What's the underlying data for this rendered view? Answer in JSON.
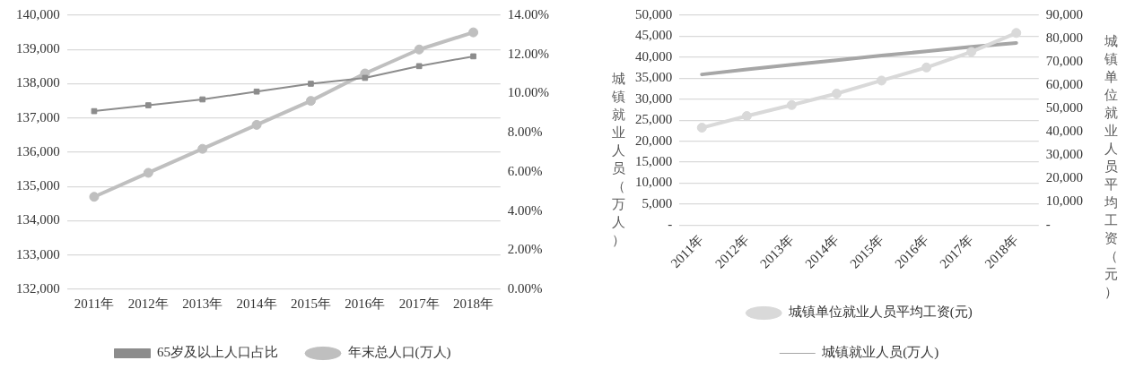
{
  "chart_data": [
    {
      "type": "line",
      "categories": [
        "2011年",
        "2012年",
        "2013年",
        "2014年",
        "2015年",
        "2016年",
        "2017年",
        "2018年"
      ],
      "series": [
        {
          "name": "年末总人口(万人)",
          "color": "#bfbfbf",
          "marker": "circle",
          "values": [
            134700,
            135400,
            136100,
            136800,
            137500,
            138300,
            139000,
            139500
          ]
        },
        {
          "name": "65岁及以上人口占比",
          "color": "#8c8c8c",
          "marker": "square",
          "axis": "y2",
          "values": [
            9.1,
            9.4,
            9.7,
            10.1,
            10.5,
            10.8,
            11.4,
            11.9
          ]
        }
      ],
      "ylim": [
        132000,
        140000
      ],
      "yticks": [
        {
          "value": 132000,
          "label": "132,000"
        },
        {
          "value": 133000,
          "label": "133,000"
        },
        {
          "value": 134000,
          "label": "134,000"
        },
        {
          "value": 135000,
          "label": "135,000"
        },
        {
          "value": 136000,
          "label": "136,000"
        },
        {
          "value": 137000,
          "label": "137,000"
        },
        {
          "value": 138000,
          "label": "138,000"
        },
        {
          "value": 139000,
          "label": "139,000"
        },
        {
          "value": 140000,
          "label": "140,000"
        }
      ],
      "y2lim": [
        0,
        14
      ],
      "y2ticks": [
        {
          "value": 0,
          "label": "0.00%"
        },
        {
          "value": 2,
          "label": "2.00%"
        },
        {
          "value": 4,
          "label": "4.00%"
        },
        {
          "value": 6,
          "label": "6.00%"
        },
        {
          "value": 8,
          "label": "8.00%"
        },
        {
          "value": 10,
          "label": "10.00%"
        },
        {
          "value": 12,
          "label": "12.00%"
        },
        {
          "value": 14,
          "label": "14.00%"
        }
      ],
      "grid": "y",
      "legend": "bottom"
    },
    {
      "type": "line",
      "categories": [
        "2011年",
        "2012年",
        "2013年",
        "2014年",
        "2015年",
        "2016年",
        "2017年",
        "2018年"
      ],
      "series": [
        {
          "name": "城镇就业人员(万人)",
          "color": "#a6a6a6",
          "marker": "none",
          "values": [
            35900,
            37100,
            38200,
            39300,
            40400,
            41400,
            42500,
            43400
          ]
        },
        {
          "name": "城镇单位就业人员平均工资(元)",
          "color": "#d9d9d9",
          "marker": "circle",
          "axis": "y2",
          "values": [
            41800,
            46800,
            51500,
            56400,
            62000,
            67600,
            74300,
            82400
          ]
        }
      ],
      "ylabel": "城镇就业人员（万人）",
      "y2label": "城镇单位就业人员平均工资（元）",
      "ylim": [
        0,
        50000
      ],
      "yticks": [
        {
          "value": 0,
          "label": "-"
        },
        {
          "value": 5000,
          "label": "5,000"
        },
        {
          "value": 10000,
          "label": "10,000"
        },
        {
          "value": 15000,
          "label": "15,000"
        },
        {
          "value": 20000,
          "label": "20,000"
        },
        {
          "value": 25000,
          "label": "25,000"
        },
        {
          "value": 30000,
          "label": "30,000"
        },
        {
          "value": 35000,
          "label": "35,000"
        },
        {
          "value": 40000,
          "label": "40,000"
        },
        {
          "value": 45000,
          "label": "45,000"
        },
        {
          "value": 50000,
          "label": "50,000"
        }
      ],
      "y2lim": [
        0,
        90000
      ],
      "y2ticks": [
        {
          "value": 0,
          "label": "-"
        },
        {
          "value": 10000,
          "label": "10,000"
        },
        {
          "value": 20000,
          "label": "20,000"
        },
        {
          "value": 30000,
          "label": "30,000"
        },
        {
          "value": 40000,
          "label": "40,000"
        },
        {
          "value": 50000,
          "label": "50,000"
        },
        {
          "value": 60000,
          "label": "60,000"
        },
        {
          "value": 70000,
          "label": "70,000"
        },
        {
          "value": 80000,
          "label": "80,000"
        },
        {
          "value": 90000,
          "label": "90,000"
        }
      ],
      "grid": "y",
      "legend": "bottom"
    }
  ]
}
